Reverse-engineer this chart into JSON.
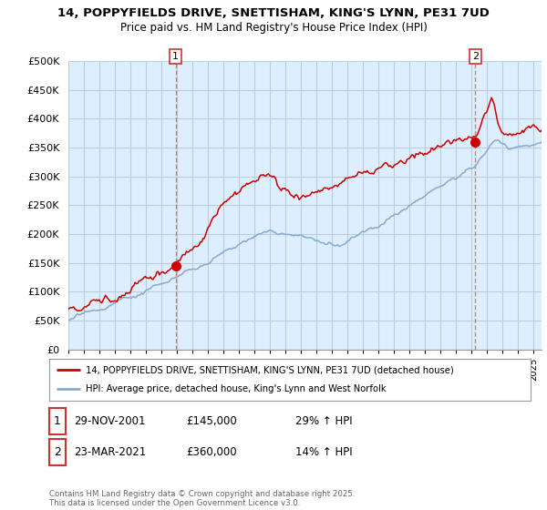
{
  "title_line1": "14, POPPYFIELDS DRIVE, SNETTISHAM, KING'S LYNN, PE31 7UD",
  "title_line2": "Price paid vs. HM Land Registry's House Price Index (HPI)",
  "ylim": [
    0,
    500000
  ],
  "yticks": [
    0,
    50000,
    100000,
    150000,
    200000,
    250000,
    300000,
    350000,
    400000,
    450000,
    500000
  ],
  "xlim_start": 1995.0,
  "xlim_end": 2025.5,
  "purchase1_date": 2001.91,
  "purchase1_price": 145000,
  "purchase2_date": 2021.23,
  "purchase2_price": 360000,
  "line_color_red": "#cc0000",
  "line_color_blue": "#88aacc",
  "vline_color": "#cc3333",
  "chart_bg": "#ddeeff",
  "background_color": "#ffffff",
  "grid_color": "#bbccdd",
  "legend_label_red": "14, POPPYFIELDS DRIVE, SNETTISHAM, KING'S LYNN, PE31 7UD (detached house)",
  "legend_label_blue": "HPI: Average price, detached house, King's Lynn and West Norfolk",
  "annotation1_date": "29-NOV-2001",
  "annotation1_price": "£145,000",
  "annotation1_hpi": "29% ↑ HPI",
  "annotation2_date": "23-MAR-2021",
  "annotation2_price": "£360,000",
  "annotation2_hpi": "14% ↑ HPI",
  "footer_text": "Contains HM Land Registry data © Crown copyright and database right 2025.\nThis data is licensed under the Open Government Licence v3.0."
}
